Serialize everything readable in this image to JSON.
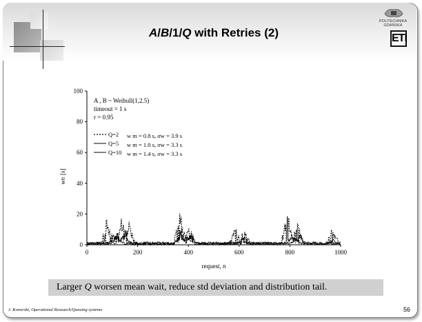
{
  "slide": {
    "title_italic_1": "A",
    "title_sep_1": "/",
    "title_italic_2": "B",
    "title_sep_2": "/1/",
    "title_italic_3": "Q",
    "title_rest": " with Retries (2)",
    "logo_text": "POLITECHNIKA GDAŃSKA",
    "logo_mark": "ETI",
    "caption_pre": "Larger ",
    "caption_q": "Q",
    "caption_post": " worsen mean wait, reduce std deviation and distribution tail.",
    "footer": "J. Konorski, Operational Research/Queuing systems",
    "page_number": "56"
  },
  "chart_data": {
    "type": "line",
    "xlabel_text": "request, ",
    "xlabel_var": "n",
    "ylabel_text": "[s]",
    "ylabel_var": "wn",
    "xlim": [
      0,
      1000
    ],
    "ylim": [
      0,
      100
    ],
    "xticks": [
      "0",
      "200",
      "400",
      "600",
      "800",
      "1000"
    ],
    "yticks": [
      "0",
      "20",
      "40",
      "60",
      "80",
      "100"
    ],
    "annotations": [
      "A , B ~ Weibull(1,2.5)",
      "timeout = 1 s",
      "r = 0.95"
    ],
    "series": [
      {
        "name": "Q=2",
        "stats": "w m = 0.8 s, σw = 3.9 s",
        "style": "dashed",
        "bursts": [
          [
            80,
            21
          ],
          [
            135,
            25
          ],
          [
            165,
            16
          ],
          [
            368,
            26
          ],
          [
            405,
            14
          ],
          [
            585,
            12
          ],
          [
            620,
            11
          ],
          [
            790,
            23
          ],
          [
            830,
            16
          ],
          [
            968,
            13
          ]
        ]
      },
      {
        "name": "Q=5",
        "stats": "w m = 1.0 s, σw = 3.3 s",
        "style": "solid",
        "bursts": [
          [
            110,
            9
          ],
          [
            150,
            10
          ],
          [
            370,
            11
          ],
          [
            400,
            9
          ],
          [
            620,
            6
          ],
          [
            810,
            7
          ],
          [
            840,
            8
          ],
          [
            970,
            4
          ]
        ]
      },
      {
        "name": "Q=10",
        "stats": "w m = 1.4 s, σw = 3.3 s",
        "style": "solid",
        "bursts": [
          [
            120,
            8
          ],
          [
            370,
            9
          ],
          [
            410,
            7
          ],
          [
            610,
            5
          ],
          [
            820,
            5
          ]
        ]
      }
    ]
  }
}
